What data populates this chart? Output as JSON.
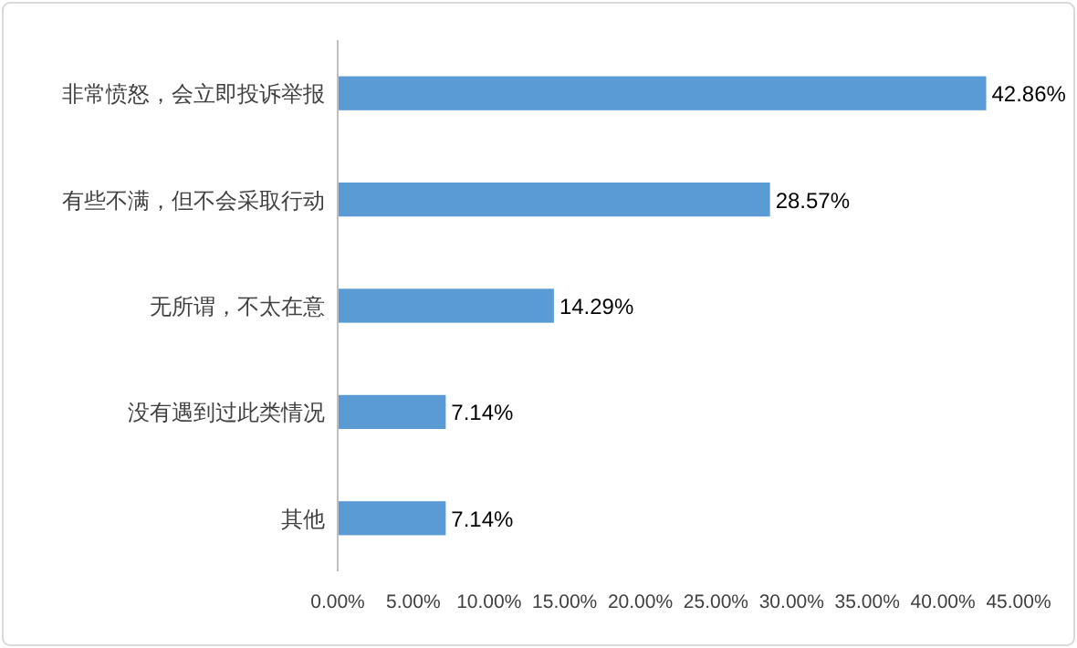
{
  "chart_data": {
    "type": "bar",
    "orientation": "horizontal",
    "categories": [
      "非常愤怒，会立即投诉举报",
      "有些不满，但不会采取行动",
      "无所谓，不太在意",
      "没有遇到过此类情况",
      "其他"
    ],
    "values": [
      42.86,
      28.57,
      14.29,
      7.14,
      7.14
    ],
    "value_labels": [
      "42.86%",
      "28.57%",
      "14.29%",
      "7.14%",
      "7.14%"
    ],
    "color": "#5b9bd5",
    "xlim": [
      0,
      45
    ],
    "xticks": [
      {
        "value": 0,
        "label": "0.00%"
      },
      {
        "value": 5,
        "label": "5.00%"
      },
      {
        "value": 10,
        "label": "10.00%"
      },
      {
        "value": 15,
        "label": "15.00%"
      },
      {
        "value": 20,
        "label": "20.00%"
      },
      {
        "value": 25,
        "label": "25.00%"
      },
      {
        "value": 30,
        "label": "30.00%"
      },
      {
        "value": 35,
        "label": "35.00%"
      },
      {
        "value": 40,
        "label": "40.00%"
      },
      {
        "value": 45,
        "label": "45.00%"
      }
    ],
    "grid": false
  }
}
